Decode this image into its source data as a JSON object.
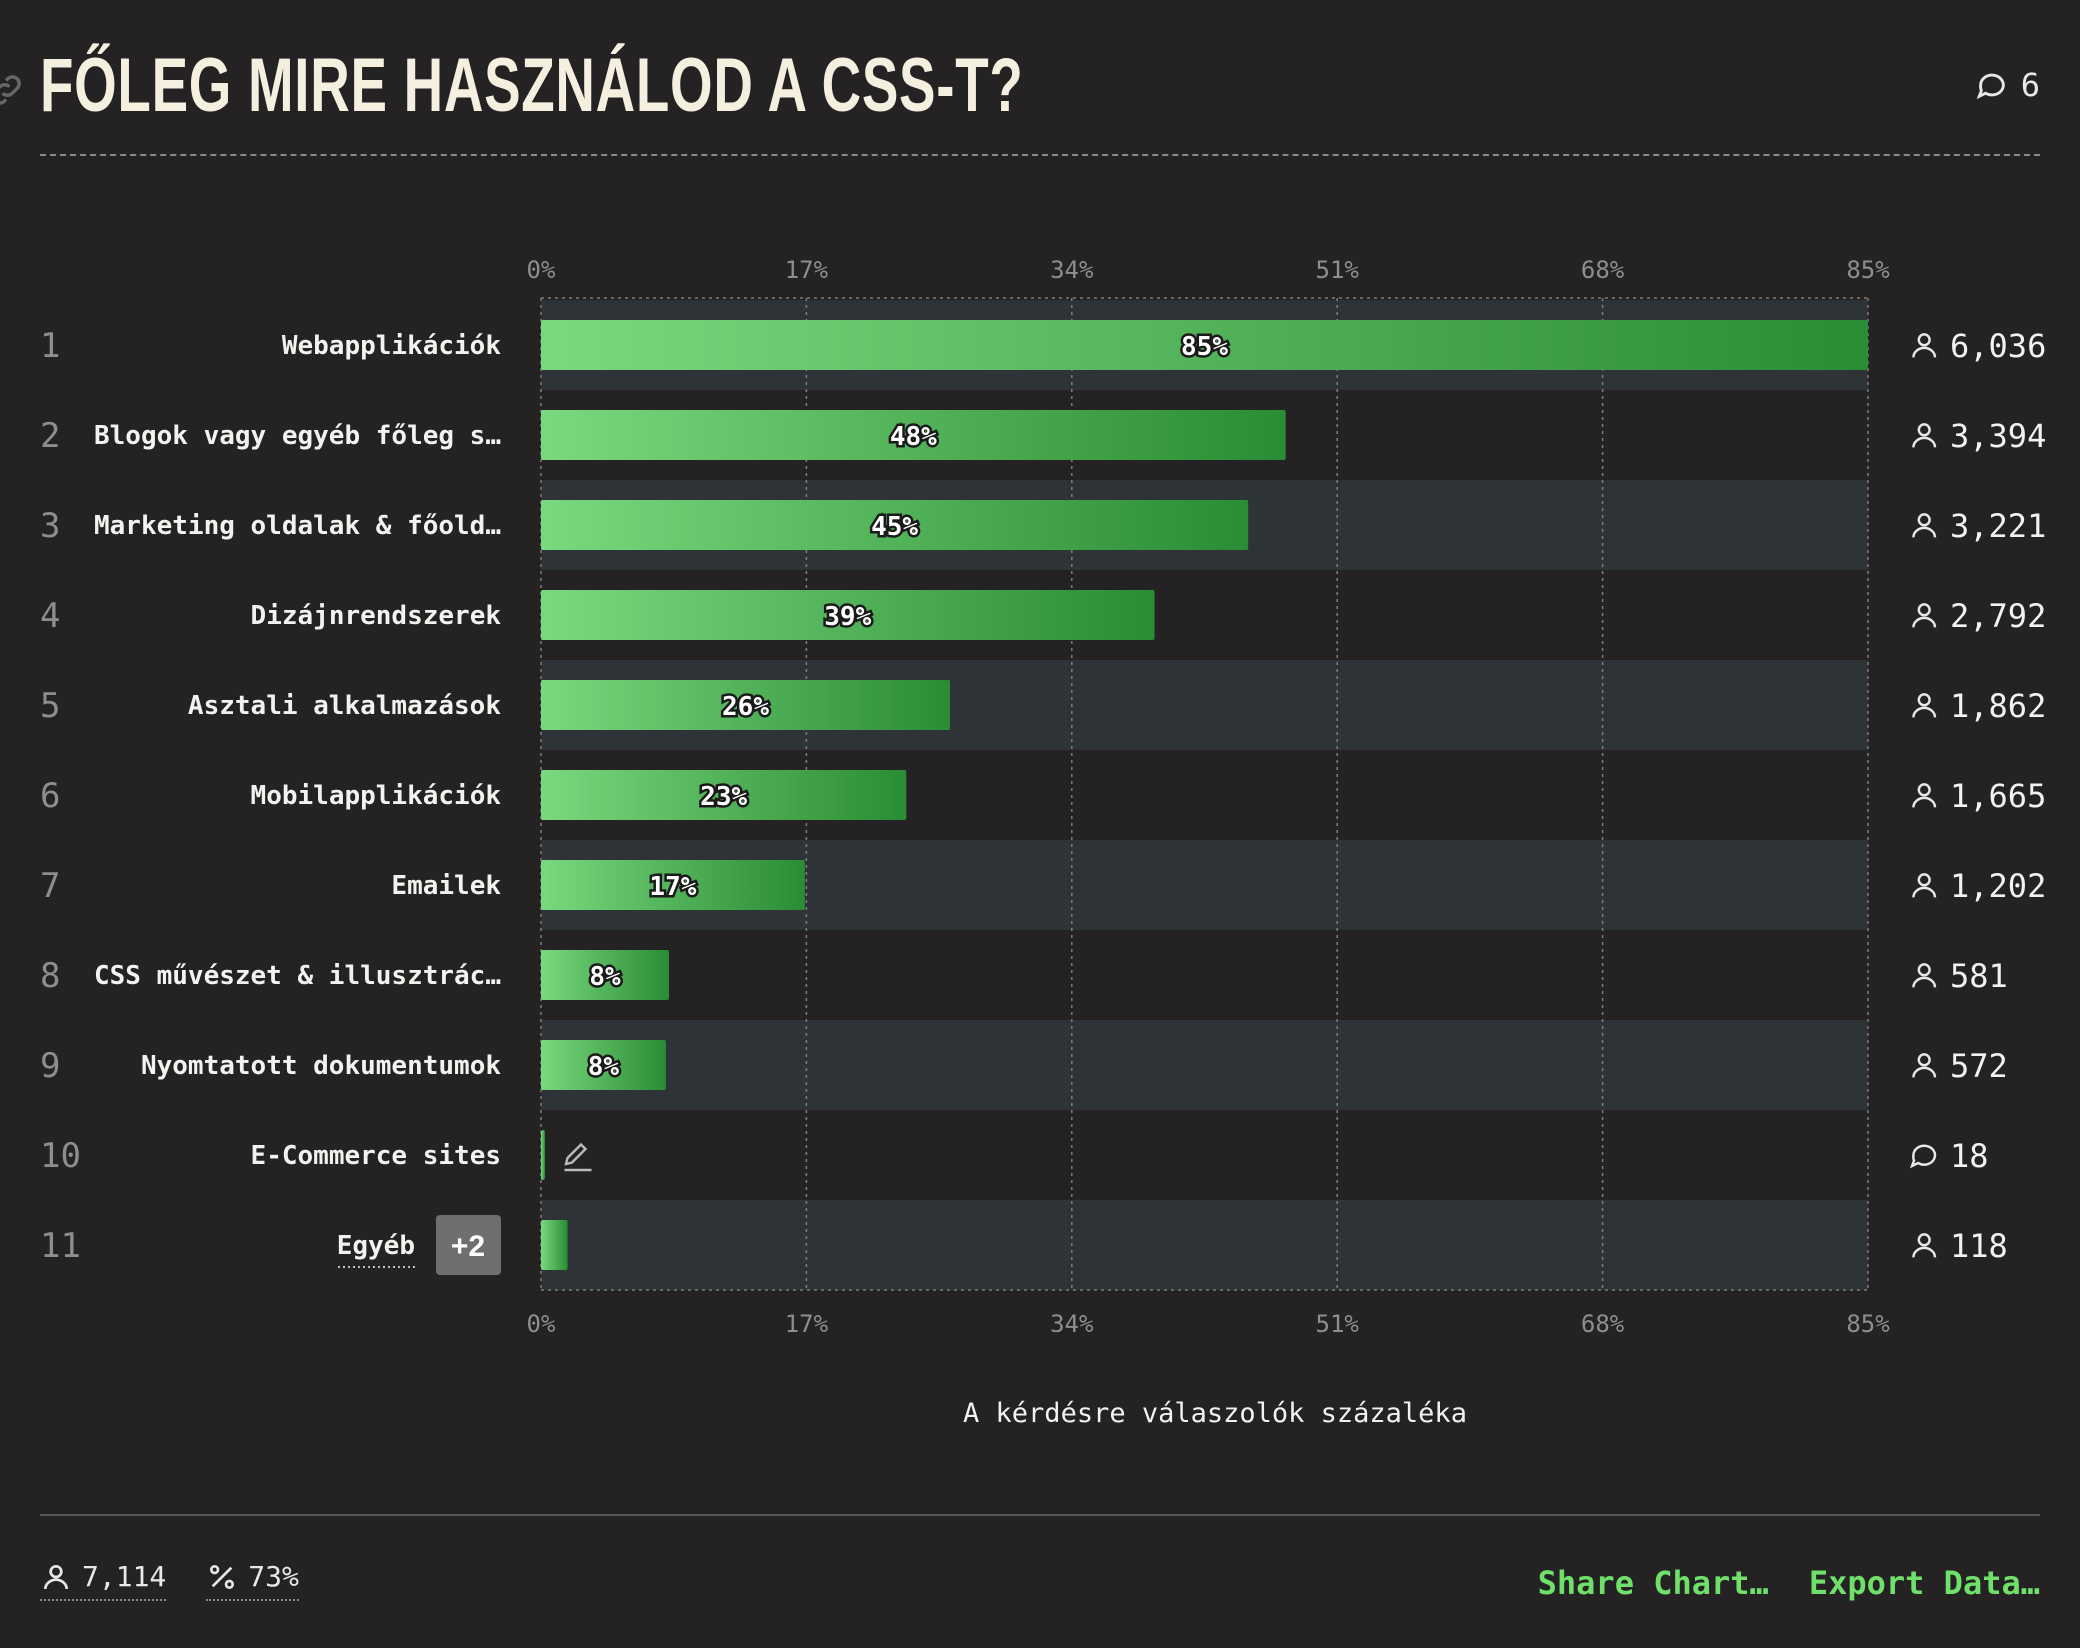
{
  "header": {
    "title": "FŐLEG MIRE HASZNÁLOD A CSS-T?",
    "comment_count": "6"
  },
  "icons": {
    "link": "link-icon",
    "comment": "comment-icon",
    "user": "user-icon",
    "percent": "percent-icon",
    "edit": "pencil-icon"
  },
  "colors": {
    "bar_start": "#7ad97f",
    "bar_end": "#2a8c34",
    "band": "#2d3336",
    "accent": "#6fe06a"
  },
  "chart_data": {
    "type": "bar",
    "orientation": "horizontal",
    "xticks": [
      "0%",
      "17%",
      "34%",
      "51%",
      "68%",
      "85%"
    ],
    "xlim": [
      0,
      85
    ],
    "xlabel": "A kérdésre válaszolók százaléka",
    "grid": true,
    "rows": [
      {
        "rank": "1",
        "label": "Webapplikációk",
        "value": 85,
        "value_label": "85%",
        "count": "6,036",
        "count_icon": "user"
      },
      {
        "rank": "2",
        "label": "Blogok vagy egyéb főleg s…",
        "value": 47.7,
        "value_label": "48%",
        "count": "3,394",
        "count_icon": "user"
      },
      {
        "rank": "3",
        "label": "Marketing oldalak & főold…",
        "value": 45.3,
        "value_label": "45%",
        "count": "3,221",
        "count_icon": "user"
      },
      {
        "rank": "4",
        "label": "Dizájnrendszerek",
        "value": 39.3,
        "value_label": "39%",
        "count": "2,792",
        "count_icon": "user"
      },
      {
        "rank": "5",
        "label": "Asztali alkalmazások",
        "value": 26.2,
        "value_label": "26%",
        "count": "1,862",
        "count_icon": "user"
      },
      {
        "rank": "6",
        "label": "Mobilapplikációk",
        "value": 23.4,
        "value_label": "23%",
        "count": "1,665",
        "count_icon": "user"
      },
      {
        "rank": "7",
        "label": "Emailek",
        "value": 16.9,
        "value_label": "17%",
        "count": "1,202",
        "count_icon": "user"
      },
      {
        "rank": "8",
        "label": "CSS művészet & illusztrác…",
        "value": 8.2,
        "value_label": "8%",
        "count": "581",
        "count_icon": "user"
      },
      {
        "rank": "9",
        "label": "Nyomtatott dokumentumok",
        "value": 8.0,
        "value_label": "8%",
        "count": "572",
        "count_icon": "user"
      },
      {
        "rank": "10",
        "label": "E-Commerce sites",
        "value": 0.25,
        "value_label": "",
        "count": "18",
        "count_icon": "comment",
        "edit_icon": true
      },
      {
        "rank": "11",
        "label": "Egyéb",
        "value": 1.7,
        "value_label": "",
        "count": "118",
        "count_icon": "user",
        "extra_badge": "+2"
      }
    ]
  },
  "footer": {
    "respondents": "7,114",
    "percentage": "73%",
    "share_label": "Share Chart…",
    "export_label": "Export Data…"
  }
}
